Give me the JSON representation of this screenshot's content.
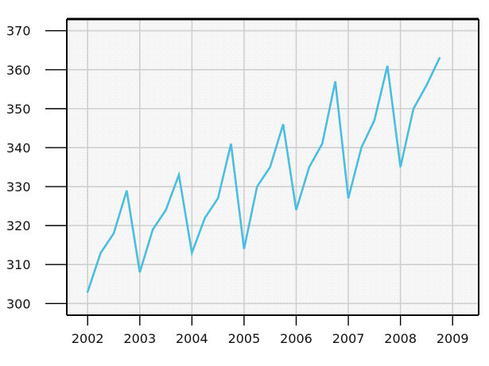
{
  "chart_data": {
    "type": "line",
    "title": "",
    "xlabel": "",
    "ylabel": "",
    "x_tick_labels": [
      "2002",
      "2003",
      "2004",
      "2005",
      "2006",
      "2007",
      "2008",
      "2009"
    ],
    "y_tick_labels": [
      "300",
      "310",
      "320",
      "330",
      "340",
      "350",
      "360",
      "370"
    ],
    "x_ticks": [
      2002,
      2003,
      2004,
      2005,
      2006,
      2007,
      2008,
      2009
    ],
    "y_ticks": [
      300,
      310,
      320,
      330,
      340,
      350,
      360,
      370
    ],
    "xlim": [
      2001.6,
      2009.5
    ],
    "ylim": [
      297,
      373
    ],
    "grid": true,
    "series": [
      {
        "x": [
          2002.0,
          2002.25,
          2002.5,
          2002.75,
          2003.0,
          2003.25,
          2003.5,
          2003.75,
          2004.0,
          2004.25,
          2004.5,
          2004.75,
          2005.0,
          2005.25,
          2005.5,
          2005.75,
          2006.0,
          2006.25,
          2006.5,
          2006.75,
          2007.0,
          2007.25,
          2007.5,
          2007.75,
          2008.0,
          2008.25,
          2008.5,
          2008.75
        ],
        "values": [
          303,
          313,
          318,
          329,
          308,
          319,
          324,
          333,
          313,
          322,
          327,
          341,
          314,
          330,
          335,
          346,
          324,
          335,
          341,
          357,
          327,
          340,
          347,
          361,
          335,
          350,
          356,
          363
        ],
        "color": "#4bbde0"
      }
    ],
    "colors": {
      "plot_background": "#f6f6f6",
      "grid": "#cfcfcf",
      "axis": "#000000",
      "line": "#4bbde0"
    }
  }
}
